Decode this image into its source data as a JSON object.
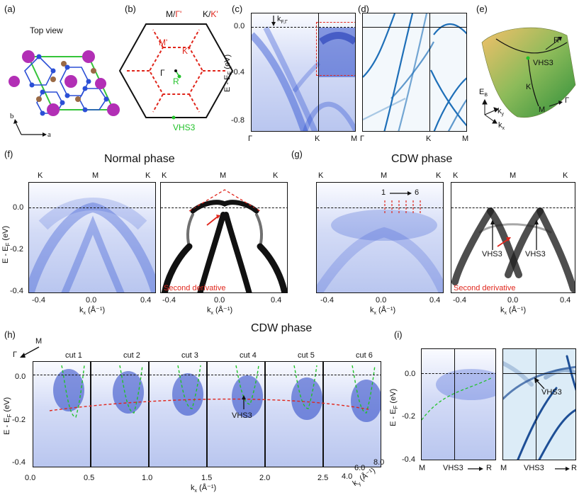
{
  "panel_labels": {
    "a": "(a)",
    "b": "(b)",
    "c": "(c)",
    "d": "(d)",
    "e": "(e)",
    "f": "(f)",
    "g": "(g)",
    "h": "(h)",
    "i": "(i)"
  },
  "panel_a": {
    "title": "Top view",
    "axis_b": "b",
    "axis_a": "a"
  },
  "panel_b": {
    "corner_m": "M/",
    "corner_gp": "Γ'",
    "corner_k": "K/",
    "corner_kp": "K'",
    "m_prime": "M'",
    "k_prime": "K'",
    "gamma": "Γ",
    "r": "R",
    "vhs3": "VHS3"
  },
  "panel_c": {
    "y_ticks": [
      "0.0",
      "-0.4",
      "-0.8"
    ],
    "y_label": "E - E",
    "y_sub": "F",
    "y_unit": " (eV)",
    "x_ticks": [
      "Γ",
      "K",
      "M"
    ],
    "kf_label": "k",
    "kf_sub": "F,Γ"
  },
  "panel_d": {
    "x_ticks": [
      "Γ",
      "K",
      "M"
    ]
  },
  "panel_e": {
    "r": "R",
    "vhs3": "VHS3",
    "k": "K",
    "m": "M",
    "gamma": "Γ",
    "eb": "E",
    "eb_sub": "B",
    "ky": "k",
    "ky_sub": "y",
    "kx": "k",
    "kx_sub": "x"
  },
  "panel_f": {
    "title": "Normal phase",
    "top_ticks": [
      "K",
      "M",
      "K"
    ],
    "y_ticks": [
      "0.0",
      "-0.2",
      "-0.4"
    ],
    "x_ticks": [
      "-0.4",
      "0.0",
      "0.4"
    ],
    "x_label": "k",
    "x_sub": "x",
    "x_unit": " (Å⁻¹)",
    "second_derivative": "Second derivative"
  },
  "panel_g": {
    "title": "CDW phase",
    "top_ticks": [
      "K",
      "M",
      "K"
    ],
    "x_ticks": [
      "-0.4",
      "0.0",
      "0.4"
    ],
    "cut_start": "1",
    "cut_end": "6",
    "vhs_left": "VHS3",
    "vhs_right": "VHS3",
    "second_derivative": "Second derivative"
  },
  "panel_h": {
    "title": "CDW phase",
    "gamma": "Γ",
    "m": "M",
    "cuts": [
      "cut 1",
      "cut 2",
      "cut 3",
      "cut 4",
      "cut 5",
      "cut 6"
    ],
    "vhs3": "VHS3",
    "y_ticks": [
      "0.0",
      "-0.2",
      "-0.4"
    ],
    "x_ticks": [
      "0.0",
      "0.5",
      "1.0",
      "1.5",
      "2.0",
      "2.5"
    ],
    "x_label": "k",
    "x_sub": "x",
    "x_unit": " (Å⁻¹)",
    "ky_ticks": [
      "4.0",
      "6.0",
      "8.0"
    ],
    "ky_label": "k",
    "ky_sub": "y",
    "ky_unit": " (Å⁻¹)"
  },
  "panel_i": {
    "y_ticks": [
      "0.0",
      "-0.2",
      "-0.4"
    ],
    "x_ticks_left": [
      "M",
      "VHS3",
      "R"
    ],
    "x_ticks_right": [
      "M",
      "VHS3",
      "R"
    ],
    "vhs3": "VHS3"
  },
  "colors": {
    "band": "#2d4fd1",
    "red": "#e0261c",
    "green": "#22c22a",
    "calc_band": "#1e6fb8"
  }
}
